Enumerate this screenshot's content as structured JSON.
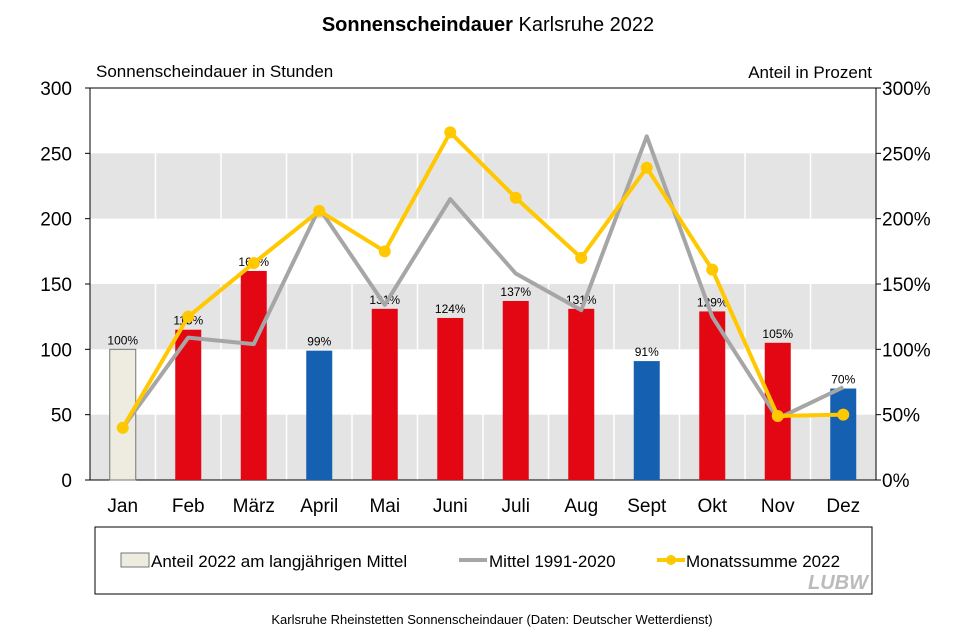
{
  "chart_data": {
    "type": "bar+line",
    "title_bold": "Sonnenscheindauer",
    "title_rest": "Karlsruhe 2022",
    "ylabel_left": "Sonnenscheindauer  in Stunden",
    "ylabel_right": "Anteil  in Prozent",
    "ylim_left": [
      0,
      300
    ],
    "ylim_right": [
      0,
      300
    ],
    "left_ticks": [
      "0",
      "50",
      "100",
      "150",
      "200",
      "250",
      "300"
    ],
    "right_ticks": [
      "0%",
      "50%",
      "100%",
      "150%",
      "200%",
      "250%",
      "300%"
    ],
    "categories": [
      "Jan",
      "Feb",
      "März",
      "April",
      "Mai",
      "Juni",
      "Juli",
      "Aug",
      "Sept",
      "Okt",
      "Nov",
      "Dez"
    ],
    "bars": {
      "name": "Anteil 2022 am langjährigen Mittel",
      "values": [
        100,
        115,
        160,
        99,
        131,
        124,
        137,
        131,
        91,
        129,
        105,
        70
      ],
      "labels": [
        "100%",
        "115%",
        "160%",
        "99%",
        "131%",
        "124%",
        "137%",
        "131%",
        "91%",
        "129%",
        "105%",
        "70%"
      ]
    },
    "series": [
      {
        "name": "Mittel 1991-2020",
        "values": [
          40,
          109,
          104,
          208,
          134,
          215,
          158,
          130,
          263,
          125,
          47,
          71
        ],
        "color": "#a6a6a6"
      },
      {
        "name": "Monatssumme 2022",
        "values": [
          40,
          125,
          166,
          206,
          175,
          266,
          216,
          170,
          239,
          161,
          49,
          50
        ],
        "color": "#ffc800"
      }
    ],
    "colors": {
      "above": "#e30613",
      "below": "#1560b0",
      "reference": "#eeebe0",
      "band": "#e4e4e4"
    },
    "grid": "alternating horizontal bands",
    "legend": "bottom",
    "footer": "Karlsruhe Rheinstetten Sonnenscheindauer (Daten: Deutscher Wetterdienst)",
    "logo": "LUBW"
  }
}
